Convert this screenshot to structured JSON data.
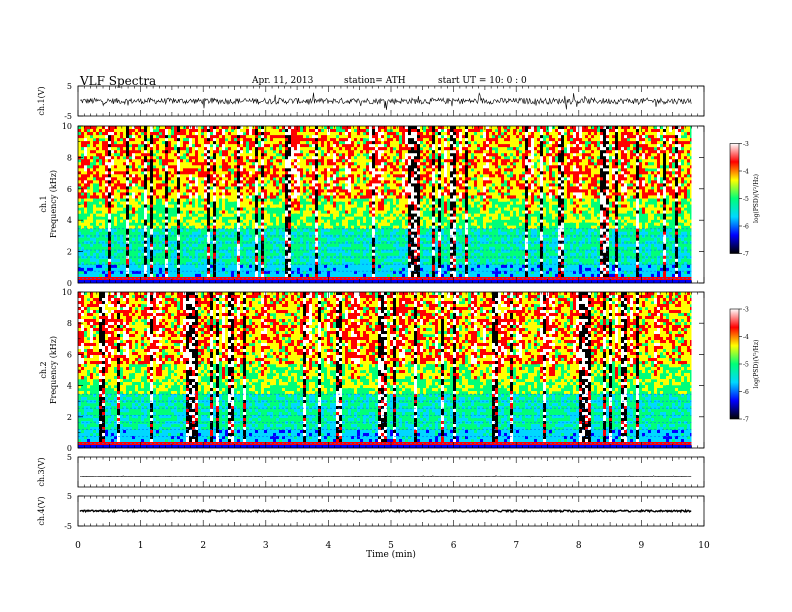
{
  "header": {
    "title": "VLF  Spectra",
    "date": "Apr. 11, 2013",
    "station": "station= ATH",
    "start": "start  UT  =    10: 0  : 0"
  },
  "chart_data": [
    {
      "type": "line",
      "name": "ch1-waveform",
      "ylabel": "ch.1(V)",
      "ylim": [
        -5,
        5
      ],
      "yticks": [
        "5",
        "-5"
      ],
      "xlim": [
        0,
        10
      ],
      "data_end_min": 9.8,
      "baseline": 0,
      "typical_amplitude": 1,
      "spike_amplitude": 3
    },
    {
      "type": "heatmap",
      "name": "ch1-spectrogram",
      "ylabel": "ch.1\nFrequency  (kHz)",
      "ylim": [
        0,
        10
      ],
      "yticks": [
        "0",
        "2",
        "4",
        "6",
        "8",
        "10"
      ],
      "xlim": [
        0,
        10
      ],
      "data_end_min": 9.8,
      "colorbar": {
        "label": "log(PSD)(V²/Hz)",
        "range": [
          -7,
          -3
        ],
        "ticks": [
          "-3",
          "-4",
          "-5",
          "-6",
          "-7"
        ]
      }
    },
    {
      "type": "heatmap",
      "name": "ch2-spectrogram",
      "ylabel": "ch.2\nFrequency  (kHz)",
      "ylim": [
        0,
        10
      ],
      "yticks": [
        "0",
        "2",
        "4",
        "6",
        "8",
        "10"
      ],
      "xlim": [
        0,
        10
      ],
      "data_end_min": 9.8,
      "colorbar": {
        "label": "log(PSD)(V²/Hz)",
        "range": [
          -7,
          -3
        ],
        "ticks": [
          "-3",
          "-4",
          "-5",
          "-6",
          "-7"
        ]
      }
    },
    {
      "type": "line",
      "name": "ch3-waveform",
      "ylabel": "ch.3(V)",
      "ylim": [
        -5,
        5
      ],
      "yticks": [
        "5"
      ],
      "xlim": [
        0,
        10
      ],
      "data_end_min": 9.8,
      "baseline": -1.5,
      "typical_amplitude": 0.05,
      "spike_amplitude": 0.3
    },
    {
      "type": "line",
      "name": "ch4-waveform",
      "ylabel": "ch.4(V)",
      "ylim": [
        -5,
        5
      ],
      "yticks": [
        "5",
        "-5"
      ],
      "xlim": [
        0,
        10
      ],
      "data_end_min": 9.8,
      "baseline": 0,
      "typical_amplitude": 0.3,
      "spike_amplitude": 0.3
    }
  ],
  "x_axis": {
    "label": "Time  (min)",
    "range": [
      0,
      10
    ],
    "ticks": [
      "0",
      "1",
      "2",
      "3",
      "4",
      "5",
      "6",
      "7",
      "8",
      "9",
      "10"
    ]
  },
  "colormap": [
    "#000000",
    "#0000ff",
    "#00d8ff",
    "#00ff78",
    "#ffff00",
    "#ff0000",
    "#ffffff"
  ]
}
